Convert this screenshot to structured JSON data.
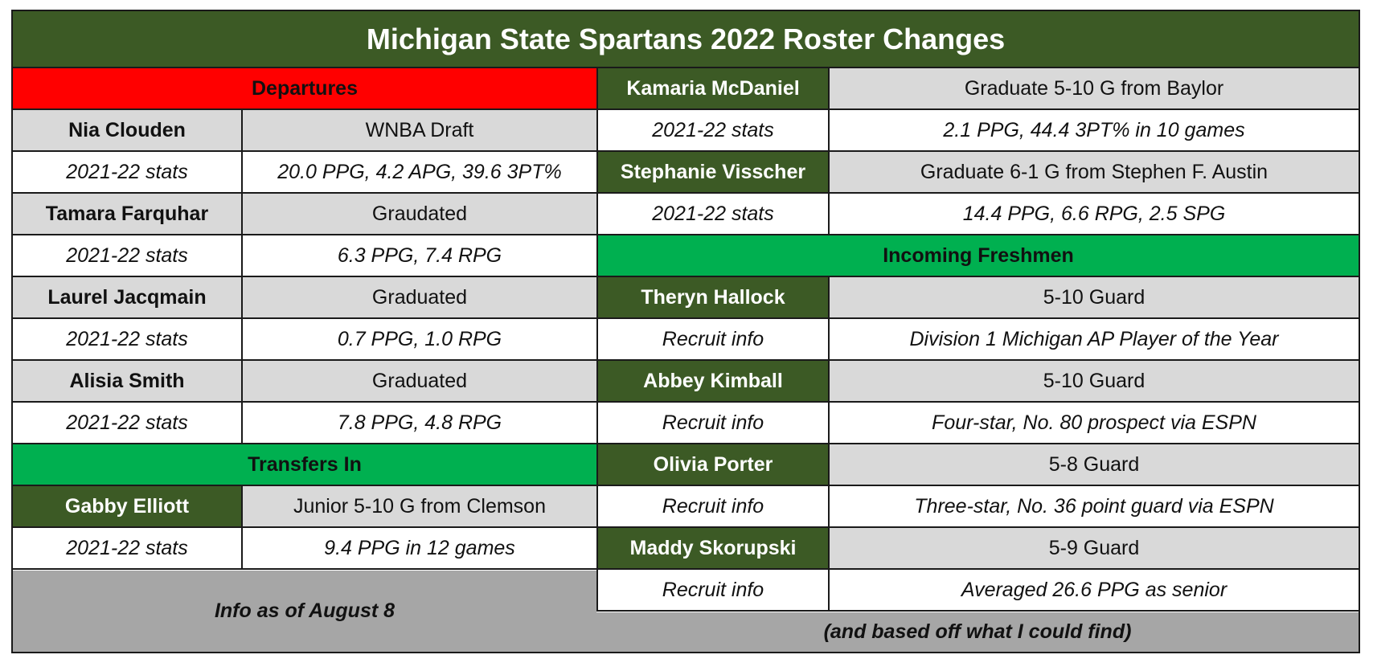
{
  "title": "Michigan State Spartans 2022 Roster Changes",
  "colors": {
    "dark_green": "#3c5a25",
    "bright_green": "#00b050",
    "red": "#ff0000",
    "light_gray": "#d9d9d9",
    "footer_gray": "#a6a6a6"
  },
  "left": {
    "departures_header": "Departures",
    "departures": [
      {
        "name": "Nia Clouden",
        "status": "WNBA Draft",
        "stats_label": "2021-22 stats",
        "stats": "20.0 PPG, 4.2 APG, 39.6 3PT%"
      },
      {
        "name": "Tamara Farquhar",
        "status": "Graudated",
        "stats_label": "2021-22 stats",
        "stats": "6.3 PPG, 7.4 RPG"
      },
      {
        "name": "Laurel Jacqmain",
        "status": "Graduated",
        "stats_label": "2021-22 stats",
        "stats": "0.7 PPG, 1.0 RPG"
      },
      {
        "name": "Alisia Smith",
        "status": "Graduated",
        "stats_label": "2021-22 stats",
        "stats": "7.8 PPG, 4.8 RPG"
      }
    ],
    "transfers_header": "Transfers In",
    "transfers": [
      {
        "name": "Gabby Elliott",
        "info": "Junior 5-10 G from Clemson",
        "stats_label": "2021-22 stats",
        "stats": "9.4 PPG in 12 games"
      }
    ],
    "footer": "Info as of August 8"
  },
  "right": {
    "transfers": [
      {
        "name": "Kamaria McDaniel",
        "info": "Graduate 5-10 G from Baylor",
        "stats_label": "2021-22 stats",
        "stats": "2.1 PPG, 44.4 3PT% in 10 games"
      },
      {
        "name": "Stephanie Visscher",
        "info": "Graduate 6-1 G from Stephen F. Austin",
        "stats_label": "2021-22 stats",
        "stats": "14.4 PPG, 6.6 RPG, 2.5 SPG"
      }
    ],
    "freshmen_header": "Incoming Freshmen",
    "freshmen": [
      {
        "name": "Theryn Hallock",
        "position": "5-10 Guard",
        "info_label": "Recruit info",
        "info": "Division 1 Michigan AP Player of the Year"
      },
      {
        "name": "Abbey Kimball",
        "position": "5-10 Guard",
        "info_label": "Recruit info",
        "info": "Four-star, No. 80 prospect via ESPN"
      },
      {
        "name": "Olivia Porter",
        "position": "5-8 Guard",
        "info_label": "Recruit info",
        "info": "Three-star, No. 36 point guard via ESPN"
      },
      {
        "name": "Maddy Skorupski",
        "position": "5-9 Guard",
        "info_label": "Recruit info",
        "info": "Averaged 26.6 PPG as senior"
      }
    ],
    "footer": "(and based off what I could find)"
  }
}
